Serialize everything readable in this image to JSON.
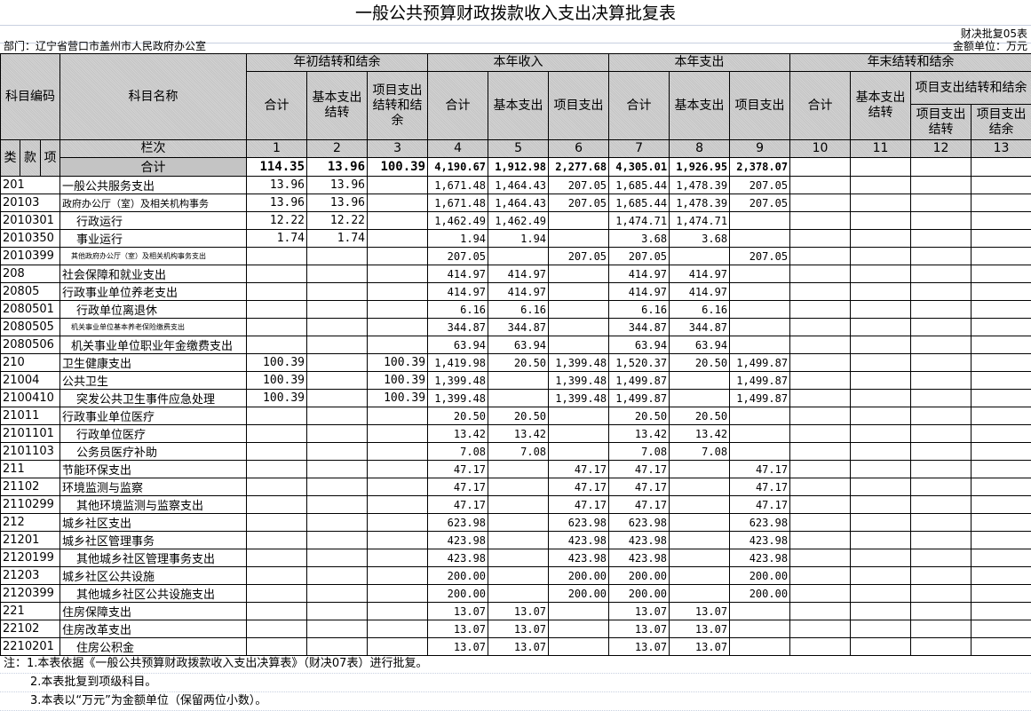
{
  "title": "一般公共预算财政拨款收入支出决算批复表",
  "form_no": "财决批复05表",
  "department": "部门：辽宁省营口市盖州市人民政府办公室",
  "unit": "金额单位：万元",
  "header": {
    "code": "科目编码",
    "name": "科目名称",
    "class_labels": [
      "类",
      "款",
      "项"
    ],
    "row_index_label": "栏次",
    "total_label": "合计",
    "groups": [
      "年初结转和结余",
      "本年收入",
      "本年支出",
      "年末结转和结余"
    ],
    "sub": [
      "合计",
      "基本支出结转",
      "项目支出结转和结余",
      "合计",
      "基本支出",
      "项目支出",
      "合计",
      "基本支出",
      "项目支出",
      "合计",
      "基本支出结转",
      "项目支出结转和结余"
    ],
    "sub2": [
      "项目支出结转",
      "项目支出结余"
    ],
    "col_numbers": [
      "1",
      "2",
      "3",
      "4",
      "5",
      "6",
      "7",
      "8",
      "9",
      "10",
      "11",
      "12",
      "13"
    ]
  },
  "total": [
    "114.35",
    "13.96",
    "100.39",
    "4,190.67",
    "1,912.98",
    "2,277.68",
    "4,305.01",
    "1,926.95",
    "2,378.07",
    "",
    "",
    "",
    ""
  ],
  "rows": [
    {
      "code": "201",
      "name": "一般公共服务支出",
      "level": 1,
      "v": [
        "13.96",
        "13.96",
        "",
        "1,671.48",
        "1,464.43",
        "207.05",
        "1,685.44",
        "1,478.39",
        "207.05",
        "",
        "",
        "",
        ""
      ]
    },
    {
      "code": "20103",
      "name": "政府办公厅（室）及相关机构事务",
      "level": 2,
      "v": [
        "13.96",
        "13.96",
        "",
        "1,671.48",
        "1,464.43",
        "207.05",
        "1,685.44",
        "1,478.39",
        "207.05",
        "",
        "",
        "",
        ""
      ]
    },
    {
      "code": "2010301",
      "name": "行政运行",
      "level": 3,
      "v": [
        "12.22",
        "12.22",
        "",
        "1,462.49",
        "1,462.49",
        "",
        "1,474.71",
        "1,474.71",
        "",
        "",
        "",
        "",
        ""
      ]
    },
    {
      "code": "2010350",
      "name": "事业运行",
      "level": 3,
      "v": [
        "1.74",
        "1.74",
        "",
        "1.94",
        "1.94",
        "",
        "3.68",
        "3.68",
        "",
        "",
        "",
        "",
        ""
      ]
    },
    {
      "code": "2010399",
      "name": "其他政府办公厅（室）及相关机构事务支出",
      "level": 3,
      "v": [
        "",
        "",
        "",
        "207.05",
        "",
        "207.05",
        "207.05",
        "",
        "207.05",
        "",
        "",
        "",
        ""
      ]
    },
    {
      "code": "208",
      "name": "社会保障和就业支出",
      "level": 1,
      "v": [
        "",
        "",
        "",
        "414.97",
        "414.97",
        "",
        "414.97",
        "414.97",
        "",
        "",
        "",
        "",
        ""
      ]
    },
    {
      "code": "20805",
      "name": "行政事业单位养老支出",
      "level": 2,
      "v": [
        "",
        "",
        "",
        "414.97",
        "414.97",
        "",
        "414.97",
        "414.97",
        "",
        "",
        "",
        "",
        ""
      ]
    },
    {
      "code": "2080501",
      "name": "行政单位离退休",
      "level": 3,
      "v": [
        "",
        "",
        "",
        "6.16",
        "6.16",
        "",
        "6.16",
        "6.16",
        "",
        "",
        "",
        "",
        ""
      ]
    },
    {
      "code": "2080505",
      "name": "机关事业单位基本养老保险缴费支出",
      "level": 3,
      "v": [
        "",
        "",
        "",
        "344.87",
        "344.87",
        "",
        "344.87",
        "344.87",
        "",
        "",
        "",
        "",
        ""
      ]
    },
    {
      "code": "2080506",
      "name": "机关事业单位职业年金缴费支出",
      "level": 3,
      "v": [
        "",
        "",
        "",
        "63.94",
        "63.94",
        "",
        "63.94",
        "63.94",
        "",
        "",
        "",
        "",
        ""
      ]
    },
    {
      "code": "210",
      "name": "卫生健康支出",
      "level": 1,
      "v": [
        "100.39",
        "",
        "100.39",
        "1,419.98",
        "20.50",
        "1,399.48",
        "1,520.37",
        "20.50",
        "1,499.87",
        "",
        "",
        "",
        ""
      ]
    },
    {
      "code": "21004",
      "name": "公共卫生",
      "level": 2,
      "v": [
        "100.39",
        "",
        "100.39",
        "1,399.48",
        "",
        "1,399.48",
        "1,499.87",
        "",
        "1,499.87",
        "",
        "",
        "",
        ""
      ]
    },
    {
      "code": "2100410",
      "name": "突发公共卫生事件应急处理",
      "level": 3,
      "v": [
        "100.39",
        "",
        "100.39",
        "1,399.48",
        "",
        "1,399.48",
        "1,499.87",
        "",
        "1,499.87",
        "",
        "",
        "",
        ""
      ]
    },
    {
      "code": "21011",
      "name": "行政事业单位医疗",
      "level": 2,
      "v": [
        "",
        "",
        "",
        "20.50",
        "20.50",
        "",
        "20.50",
        "20.50",
        "",
        "",
        "",
        "",
        ""
      ]
    },
    {
      "code": "2101101",
      "name": "行政单位医疗",
      "level": 3,
      "v": [
        "",
        "",
        "",
        "13.42",
        "13.42",
        "",
        "13.42",
        "13.42",
        "",
        "",
        "",
        "",
        ""
      ]
    },
    {
      "code": "2101103",
      "name": "公务员医疗补助",
      "level": 3,
      "v": [
        "",
        "",
        "",
        "7.08",
        "7.08",
        "",
        "7.08",
        "7.08",
        "",
        "",
        "",
        "",
        ""
      ]
    },
    {
      "code": "211",
      "name": "节能环保支出",
      "level": 1,
      "v": [
        "",
        "",
        "",
        "47.17",
        "",
        "47.17",
        "47.17",
        "",
        "47.17",
        "",
        "",
        "",
        ""
      ]
    },
    {
      "code": "21102",
      "name": "环境监测与监察",
      "level": 2,
      "v": [
        "",
        "",
        "",
        "47.17",
        "",
        "47.17",
        "47.17",
        "",
        "47.17",
        "",
        "",
        "",
        ""
      ]
    },
    {
      "code": "2110299",
      "name": "其他环境监测与监察支出",
      "level": 3,
      "v": [
        "",
        "",
        "",
        "47.17",
        "",
        "47.17",
        "47.17",
        "",
        "47.17",
        "",
        "",
        "",
        ""
      ]
    },
    {
      "code": "212",
      "name": "城乡社区支出",
      "level": 1,
      "v": [
        "",
        "",
        "",
        "623.98",
        "",
        "623.98",
        "623.98",
        "",
        "623.98",
        "",
        "",
        "",
        ""
      ]
    },
    {
      "code": "21201",
      "name": "城乡社区管理事务",
      "level": 2,
      "v": [
        "",
        "",
        "",
        "423.98",
        "",
        "423.98",
        "423.98",
        "",
        "423.98",
        "",
        "",
        "",
        ""
      ]
    },
    {
      "code": "2120199",
      "name": "其他城乡社区管理事务支出",
      "level": 3,
      "v": [
        "",
        "",
        "",
        "423.98",
        "",
        "423.98",
        "423.98",
        "",
        "423.98",
        "",
        "",
        "",
        ""
      ]
    },
    {
      "code": "21203",
      "name": "城乡社区公共设施",
      "level": 2,
      "v": [
        "",
        "",
        "",
        "200.00",
        "",
        "200.00",
        "200.00",
        "",
        "200.00",
        "",
        "",
        "",
        ""
      ]
    },
    {
      "code": "2120399",
      "name": "其他城乡社区公共设施支出",
      "level": 3,
      "v": [
        "",
        "",
        "",
        "200.00",
        "",
        "200.00",
        "200.00",
        "",
        "200.00",
        "",
        "",
        "",
        ""
      ]
    },
    {
      "code": "221",
      "name": "住房保障支出",
      "level": 1,
      "v": [
        "",
        "",
        "",
        "13.07",
        "13.07",
        "",
        "13.07",
        "13.07",
        "",
        "",
        "",
        "",
        ""
      ]
    },
    {
      "code": "22102",
      "name": "住房改革支出",
      "level": 2,
      "v": [
        "",
        "",
        "",
        "13.07",
        "13.07",
        "",
        "13.07",
        "13.07",
        "",
        "",
        "",
        "",
        ""
      ]
    },
    {
      "code": "2210201",
      "name": "住房公积金",
      "level": 3,
      "v": [
        "",
        "",
        "",
        "13.07",
        "13.07",
        "",
        "13.07",
        "13.07",
        "",
        "",
        "",
        "",
        ""
      ]
    }
  ],
  "notes": [
    "注：1.本表依据《一般公共预算财政拨款收入支出决算表》（财决07表）进行批复。",
    "2.本表批复到项级科目。",
    "3.本表以“万元”为金额单位（保留两位小数）。"
  ]
}
